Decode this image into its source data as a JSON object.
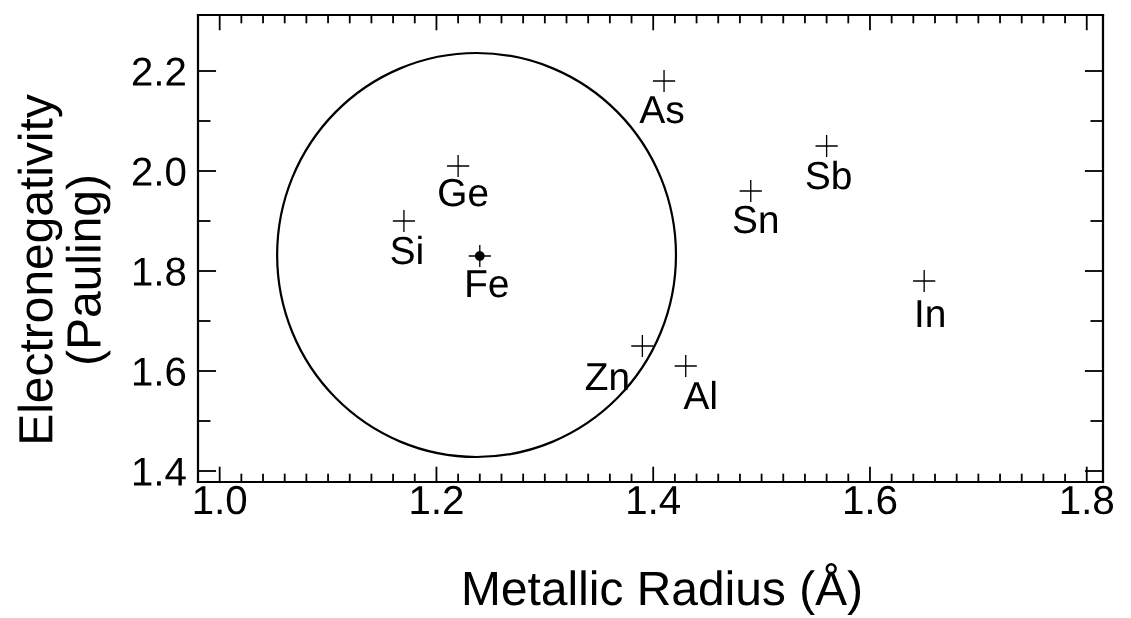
{
  "chart_data": {
    "type": "scatter",
    "xlabel": "Metallic Radius (Å)",
    "ylabel": "Electronegativity\n(Pauling)",
    "xlim": [
      0.98,
      1.815
    ],
    "ylim": [
      1.378,
      2.312
    ],
    "xticks": [
      {
        "value": 1.0,
        "label": "1.0"
      },
      {
        "value": 1.02,
        "label": null
      },
      {
        "value": 1.04,
        "label": null
      },
      {
        "value": 1.06,
        "label": null
      },
      {
        "value": 1.08,
        "label": null
      },
      {
        "value": 1.1,
        "label": null
      },
      {
        "value": 1.12,
        "label": null
      },
      {
        "value": 1.14,
        "label": null
      },
      {
        "value": 1.16,
        "label": null
      },
      {
        "value": 1.18,
        "label": null
      },
      {
        "value": 1.2,
        "label": "1.2"
      },
      {
        "value": 1.22,
        "label": null
      },
      {
        "value": 1.24,
        "label": null
      },
      {
        "value": 1.26,
        "label": null
      },
      {
        "value": 1.28,
        "label": null
      },
      {
        "value": 1.3,
        "label": null
      },
      {
        "value": 1.32,
        "label": null
      },
      {
        "value": 1.34,
        "label": null
      },
      {
        "value": 1.36,
        "label": null
      },
      {
        "value": 1.38,
        "label": null
      },
      {
        "value": 1.4,
        "label": "1.4"
      },
      {
        "value": 1.42,
        "label": null
      },
      {
        "value": 1.44,
        "label": null
      },
      {
        "value": 1.46,
        "label": null
      },
      {
        "value": 1.48,
        "label": null
      },
      {
        "value": 1.5,
        "label": null
      },
      {
        "value": 1.52,
        "label": null
      },
      {
        "value": 1.54,
        "label": null
      },
      {
        "value": 1.56,
        "label": null
      },
      {
        "value": 1.58,
        "label": null
      },
      {
        "value": 1.6,
        "label": "1.6"
      },
      {
        "value": 1.62,
        "label": null
      },
      {
        "value": 1.64,
        "label": null
      },
      {
        "value": 1.66,
        "label": null
      },
      {
        "value": 1.68,
        "label": null
      },
      {
        "value": 1.7,
        "label": null
      },
      {
        "value": 1.72,
        "label": null
      },
      {
        "value": 1.74,
        "label": null
      },
      {
        "value": 1.76,
        "label": null
      },
      {
        "value": 1.78,
        "label": null
      },
      {
        "value": 1.8,
        "label": "1.8"
      }
    ],
    "yticks": [
      {
        "value": 1.4,
        "label": "1.4"
      },
      {
        "value": 1.5,
        "label": null
      },
      {
        "value": 1.6,
        "label": "1.6"
      },
      {
        "value": 1.7,
        "label": null
      },
      {
        "value": 1.8,
        "label": "1.8"
      },
      {
        "value": 1.9,
        "label": null
      },
      {
        "value": 2.0,
        "label": "2.0"
      },
      {
        "value": 2.1,
        "label": null
      },
      {
        "value": 2.2,
        "label": "2.2"
      }
    ],
    "series": [
      {
        "marker": "cross",
        "color": "#000000",
        "x": [
          1.17,
          1.22,
          1.24,
          1.39,
          1.41,
          1.43,
          1.49,
          1.56,
          1.65
        ],
        "values": [
          1.9,
          2.01,
          1.83,
          1.65,
          2.18,
          1.61,
          1.96,
          2.05,
          1.78
        ]
      },
      {
        "color": "#000000",
        "x": [
          1.24
        ],
        "values": [
          1.83
        ]
      }
    ],
    "annotations": [
      {
        "text": "Si",
        "x": 1.17,
        "y": 1.9
      },
      {
        "text": "Ge",
        "x": 1.22,
        "y": 2.01
      },
      {
        "text": "Fe",
        "x": 1.24,
        "y": 1.83
      },
      {
        "text": "Zn",
        "x": 1.39,
        "y": 1.65
      },
      {
        "text": "As",
        "x": 1.41,
        "y": 2.18
      },
      {
        "text": "Al",
        "x": 1.43,
        "y": 1.61
      },
      {
        "text": "Sn",
        "x": 1.49,
        "y": 1.96
      },
      {
        "text": "Sb",
        "x": 1.56,
        "y": 2.05
      },
      {
        "text": "In",
        "x": 1.65,
        "y": 1.78
      }
    ]
  }
}
